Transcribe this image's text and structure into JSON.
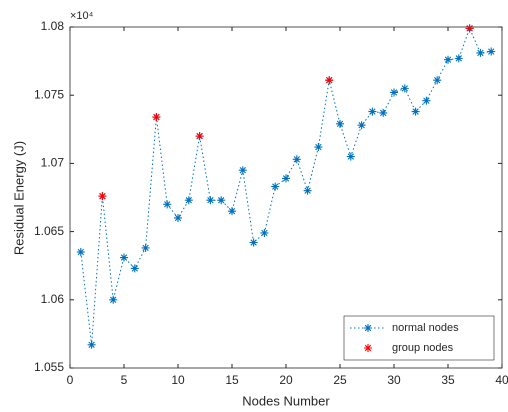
{
  "chart_data": {
    "type": "line",
    "xlabel": "Nodes Number",
    "ylabel": "Residual Energy (J)",
    "y_exponent": "×10⁴",
    "xlim": [
      0,
      40
    ],
    "xticks": [
      0,
      5,
      10,
      15,
      20,
      25,
      30,
      35,
      40
    ],
    "ylim": [
      1.055,
      1.08
    ],
    "yticks": [
      1.055,
      1.06,
      1.065,
      1.07,
      1.075,
      1.08
    ],
    "grid": false,
    "legend": "lower right",
    "series": [
      {
        "name": "normal nodes",
        "color": "#0072bd",
        "line": "dotted",
        "x": [
          1,
          2,
          3,
          4,
          5,
          6,
          7,
          8,
          9,
          10,
          11,
          12,
          13,
          14,
          15,
          16,
          17,
          18,
          19,
          20,
          21,
          22,
          23,
          24,
          25,
          26,
          27,
          28,
          29,
          30,
          31,
          32,
          33,
          34,
          35,
          36,
          37,
          38,
          39
        ],
        "values": [
          1.0635,
          1.0567,
          1.0676,
          1.06,
          1.0631,
          1.0623,
          1.0638,
          1.0734,
          1.067,
          1.066,
          1.0673,
          1.072,
          1.0673,
          1.0673,
          1.0665,
          1.0695,
          1.0642,
          1.0649,
          1.0683,
          1.0689,
          1.0703,
          1.068,
          1.0712,
          1.0761,
          1.0729,
          1.0705,
          1.0728,
          1.0738,
          1.0737,
          1.0752,
          1.0755,
          1.0738,
          1.0746,
          1.0761,
          1.0776,
          1.0777,
          1.0799,
          1.0781,
          1.0782
        ]
      },
      {
        "name": "group nodes",
        "color": "#ff0000",
        "line": "none",
        "x": [
          3,
          8,
          12,
          24,
          37
        ],
        "values": [
          1.0676,
          1.0734,
          1.072,
          1.0761,
          1.0799
        ]
      }
    ]
  }
}
